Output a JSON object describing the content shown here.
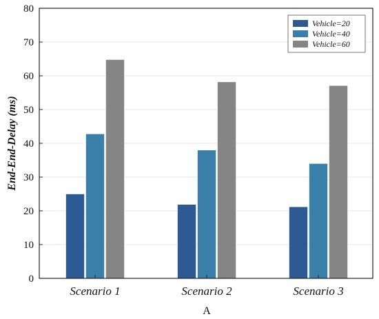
{
  "chart_data": {
    "type": "bar",
    "title": "",
    "xlabel": "",
    "ylabel": "End-End-Delay (ms)",
    "ylim": [
      0,
      80
    ],
    "yticks": [
      0,
      10,
      20,
      30,
      40,
      50,
      60,
      70,
      80
    ],
    "categories": [
      "Scenario 1",
      "Scenario 2",
      "Scenario 3"
    ],
    "series": [
      {
        "name": "Vehicle=20",
        "color": "#2e5a94",
        "values": [
          25.0,
          21.9,
          21.2
        ]
      },
      {
        "name": "Vehicle=40",
        "color": "#3a7faa",
        "values": [
          42.8,
          38.0,
          34.0
        ]
      },
      {
        "name": "Vehicle=60",
        "color": "#858585",
        "values": [
          64.8,
          58.2,
          57.1
        ]
      }
    ],
    "legend_position": "top-right",
    "grid": true,
    "subfigure_label": "A"
  }
}
